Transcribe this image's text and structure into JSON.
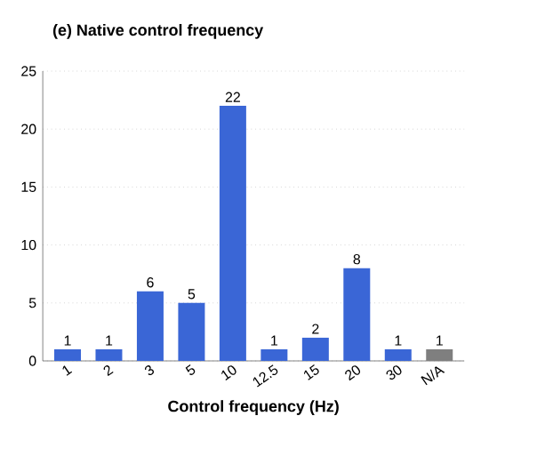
{
  "chart_data": {
    "type": "bar",
    "title": "(e) Native control frequency",
    "xlabel": "Control frequency (Hz)",
    "categories": [
      "1",
      "2",
      "3",
      "5",
      "10",
      "12.5",
      "15",
      "20",
      "30",
      "N/A"
    ],
    "values": [
      1,
      1,
      6,
      5,
      22,
      1,
      2,
      8,
      1,
      1
    ],
    "colors": [
      "#3a66d6",
      "#3a66d6",
      "#3a66d6",
      "#3a66d6",
      "#3a66d6",
      "#3a66d6",
      "#3a66d6",
      "#3a66d6",
      "#3a66d6",
      "#7f7f7f"
    ],
    "ylim": [
      0,
      25
    ],
    "yticks": [
      0,
      5,
      10,
      15,
      20,
      25
    ],
    "grid": "y",
    "data_labels": true
  }
}
